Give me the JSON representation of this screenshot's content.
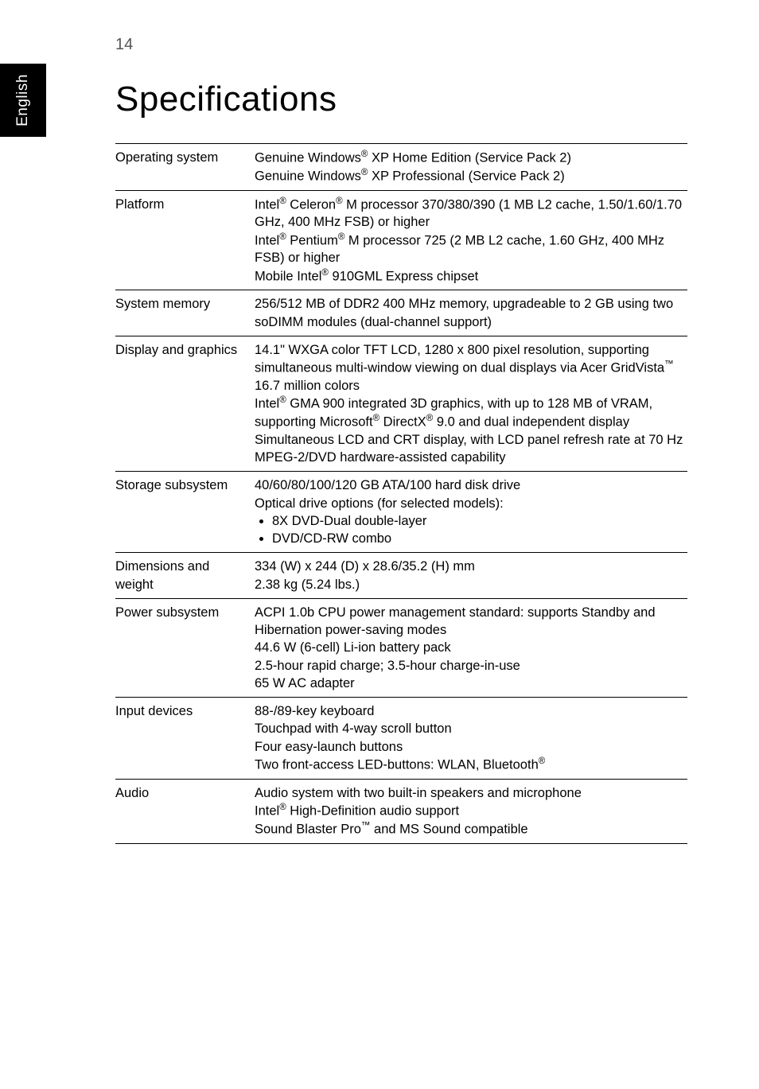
{
  "page_number": "14",
  "side_tab": "English",
  "title": "Specifications",
  "rows": [
    {
      "label": "Operating system",
      "html": "Genuine Windows<span class='sup'>®</span> XP Home Edition (Service Pack 2)<br>Genuine Windows<span class='sup'>®</span> XP Professional (Service Pack 2)"
    },
    {
      "label": "Platform",
      "html": "Intel<span class='sup'>®</span> Celeron<span class='sup'>®</span> M processor 370/380/390 (1 MB L2 cache, 1.50/1.60/1.70 GHz, 400 MHz FSB) or higher<br>Intel<span class='sup'>®</span> Pentium<span class='sup'>®</span> M processor 725 (2 MB L2 cache, 1.60 GHz, 400 MHz FSB) or higher<br>Mobile Intel<span class='sup'>®</span> 910GML Express chipset"
    },
    {
      "label": "System memory",
      "html": "256/512 MB of DDR2 400 MHz memory, upgradeable to 2 GB using two soDIMM modules (dual-channel support)"
    },
    {
      "label": "Display and graphics",
      "html": "14.1\" WXGA color TFT LCD, 1280 x 800 pixel resolution, supporting simultaneous multi-window viewing on dual displays via Acer GridVista<span class='sup'>™</span><br>16.7 million colors<br>Intel<span class='sup'>®</span> GMA 900 integrated 3D graphics, with up to 128 MB of VRAM, supporting Microsoft<span class='sup'>®</span> DirectX<span class='sup'>®</span> 9.0 and dual independent display<br>Simultaneous LCD and CRT display, with LCD panel refresh rate at 70 Hz<br>MPEG-2/DVD hardware-assisted capability"
    },
    {
      "label": "Storage subsystem",
      "html": "40/60/80/100/120 GB ATA/100 hard disk drive<br>Optical drive options (for selected models):<ul class='bullets'><li>8X DVD-Dual double-layer</li><li>DVD/CD-RW combo</li></ul>"
    },
    {
      "label": "Dimensions and weight",
      "html": "334 (W) x 244 (D) x 28.6/35.2 (H) mm<br>2.38 kg (5.24 lbs.)"
    },
    {
      "label": "Power subsystem",
      "html": "ACPI 1.0b CPU power management standard: supports Standby and Hibernation power-saving modes<br>44.6 W (6-cell) Li-ion battery pack<br>2.5-hour rapid charge; 3.5-hour charge-in-use<br>65 W AC adapter"
    },
    {
      "label": "Input devices",
      "html": "88-/89-key keyboard<br>Touchpad with 4-way scroll button<br>Four easy-launch buttons<br>Two front-access LED-buttons: WLAN, Bluetooth<span class='sup'>®</span>"
    },
    {
      "label": "Audio",
      "html": "Audio system with two built-in speakers and microphone<br>Intel<span class='sup'>®</span> High-Definition audio support<br>Sound Blaster Pro<span class='sup'>™</span> and MS Sound compatible"
    }
  ]
}
